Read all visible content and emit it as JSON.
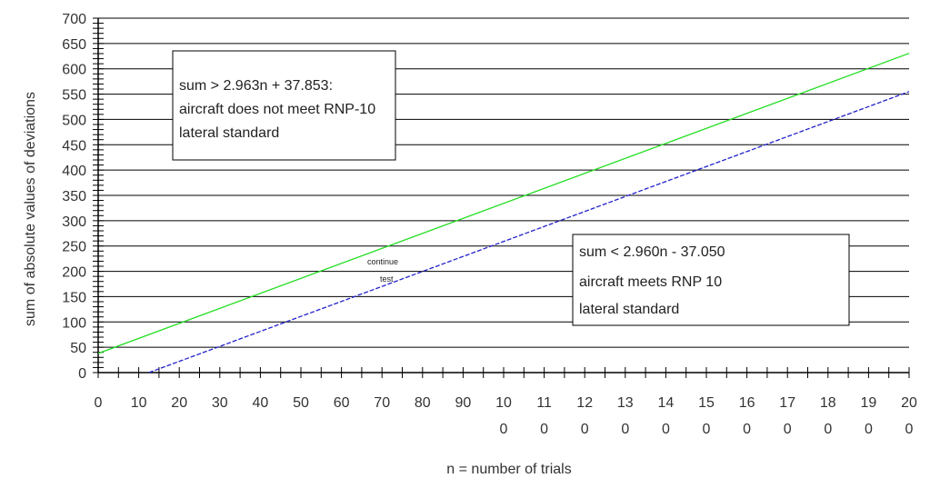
{
  "chart_data": {
    "type": "line",
    "xlabel": "n = number of trials",
    "ylabel": "sum of absolute values of deviations",
    "xlim": [
      0,
      200
    ],
    "ylim": [
      0,
      700
    ],
    "y_ticks": [
      "0",
      "50",
      "100",
      "150",
      "200",
      "250",
      "300",
      "350",
      "400",
      "450",
      "500",
      "550",
      "600",
      "650",
      "700"
    ],
    "x_tick_labels": [
      [
        "0"
      ],
      [
        "10"
      ],
      [
        "20"
      ],
      [
        "30"
      ],
      [
        "40"
      ],
      [
        "50"
      ],
      [
        "60"
      ],
      [
        "70"
      ],
      [
        "80"
      ],
      [
        "90"
      ],
      [
        "10",
        "0"
      ],
      [
        "11",
        "0"
      ],
      [
        "12",
        "0"
      ],
      [
        "13",
        "0"
      ],
      [
        "14",
        "0"
      ],
      [
        "15",
        "0"
      ],
      [
        "16",
        "0"
      ],
      [
        "17",
        "0"
      ],
      [
        "18",
        "0"
      ],
      [
        "19",
        "0"
      ],
      [
        "20",
        "0"
      ]
    ],
    "grid": "horizontal",
    "series": [
      {
        "color": "#22dd22",
        "x": [
          0,
          200
        ],
        "y": [
          37.853,
          630.453
        ]
      },
      {
        "color": "#2222cc",
        "x": [
          12.5,
          200
        ],
        "y": [
          0,
          554.95
        ]
      }
    ],
    "annotations": {
      "upper_box": [
        "sum > 2.963n + 37.853:",
        "aircraft does not meet RNP-10",
        "lateral standard"
      ],
      "lower_box": [
        "sum < 2.960n - 37.050",
        "aircraft meets RNP 10",
        "lateral standard"
      ],
      "middle_note": [
        "continue",
        "test"
      ]
    }
  }
}
